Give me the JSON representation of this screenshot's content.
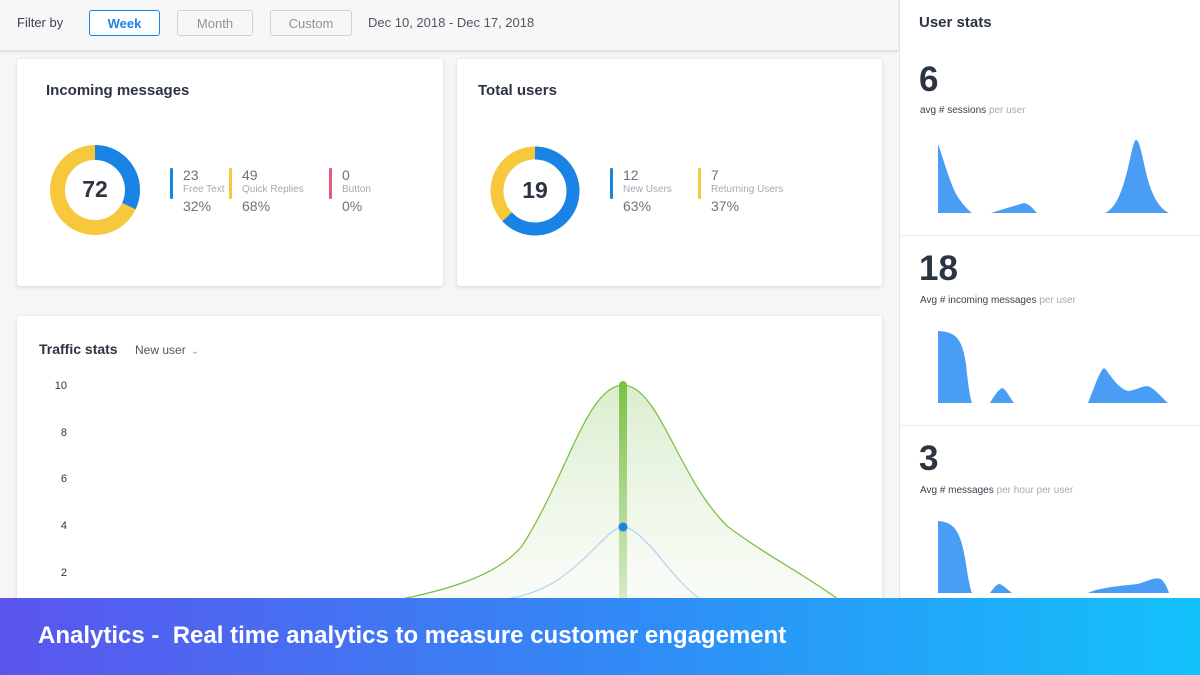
{
  "filter": {
    "label": "Filter by",
    "buttons": [
      "Week",
      "Month",
      "Custom"
    ],
    "active": "Week",
    "date_range": "Dec 10, 2018 - Dec 17, 2018"
  },
  "incoming_messages": {
    "title": "Incoming messages",
    "total": "72",
    "items": [
      {
        "count": "23",
        "label": "Free Text",
        "percent": "32%",
        "color": "#1a84e6"
      },
      {
        "count": "49",
        "label": "Quick Replies",
        "percent": "68%",
        "color": "#f7c83c"
      },
      {
        "count": "0",
        "label": "Button",
        "percent": "0%",
        "color": "#e65a75"
      }
    ]
  },
  "total_users": {
    "title": "Total users",
    "total": "19",
    "items": [
      {
        "count": "12",
        "label": "New Users",
        "percent": "63%",
        "color": "#1a84e6"
      },
      {
        "count": "7",
        "label": "Returning Users",
        "percent": "37%",
        "color": "#f7c83c"
      }
    ]
  },
  "traffic": {
    "title": "Traffic stats",
    "selector": "New user",
    "chevron_icon": "chevron-down-icon",
    "y_ticks": [
      "10",
      "8",
      "6",
      "4",
      "2"
    ]
  },
  "chart_data": {
    "type": "area",
    "title": "Traffic stats",
    "ylim": [
      0,
      10
    ],
    "y_ticks": [
      10,
      8,
      6,
      4,
      2
    ],
    "series": [
      {
        "color": "#7cc148",
        "peak": 10
      },
      {
        "color": "#a9d5f5",
        "peak": 4
      }
    ]
  },
  "user_stats": {
    "title": "User stats",
    "stats": [
      {
        "value": "6",
        "label": "avg # sessions",
        "suffix": "per user"
      },
      {
        "value": "18",
        "label": "Avg # incoming messages",
        "suffix": "per user"
      },
      {
        "value": "3",
        "label": "Avg # messages",
        "suffix": "per hour per user"
      }
    ],
    "spark_color": "#4a9df5"
  },
  "banner": {
    "text": "Analytics -  Real time analytics to measure customer engagement"
  }
}
